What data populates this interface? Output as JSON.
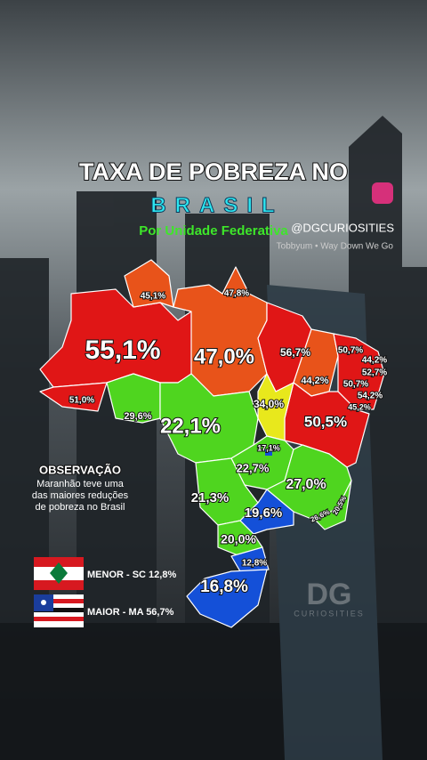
{
  "header": {
    "title": "TAXA DE POBREZA NO",
    "highlight": "BRASIL",
    "subtitle": "Por Unidade Federativa",
    "handle": "@DGCURIOSITIES",
    "music": "Tobbyum • Way Down We Go"
  },
  "map": {
    "regions": [
      {
        "label": "45,1%"
      },
      {
        "label": "47,8%"
      },
      {
        "label": "55,1%"
      },
      {
        "label": "47,0%"
      },
      {
        "label": "51,0%"
      },
      {
        "label": "56,7%"
      },
      {
        "label": "44,2%"
      },
      {
        "label": "50,7%"
      },
      {
        "label": "44,2%"
      },
      {
        "label": "52,7%"
      },
      {
        "label": "50,7%"
      },
      {
        "label": "54,2%"
      },
      {
        "label": "45,2%"
      },
      {
        "label": "34,0%"
      },
      {
        "label": "50,5%"
      },
      {
        "label": "29,6%"
      },
      {
        "label": "22,1%"
      },
      {
        "label": "17,1%"
      },
      {
        "label": "22,7%"
      },
      {
        "label": "27,0%"
      },
      {
        "label": "21,3%"
      },
      {
        "label": "19,6%"
      },
      {
        "label": "26,6%"
      },
      {
        "label": "20,5%"
      },
      {
        "label": "20,0%"
      },
      {
        "label": "12,8%"
      },
      {
        "label": "16,8%"
      }
    ]
  },
  "note": {
    "title": "OBSERVAÇÃO",
    "lines": [
      "Maranhão teve uma",
      "das maiores reduções",
      "de pobreza no Brasil"
    ]
  },
  "legend": [
    {
      "label": "MENOR - SC 12,8%"
    },
    {
      "label": "MAIOR - MA 56,7%"
    }
  ],
  "watermark": {
    "logo": "DG",
    "name": "CURIOSITIES"
  }
}
